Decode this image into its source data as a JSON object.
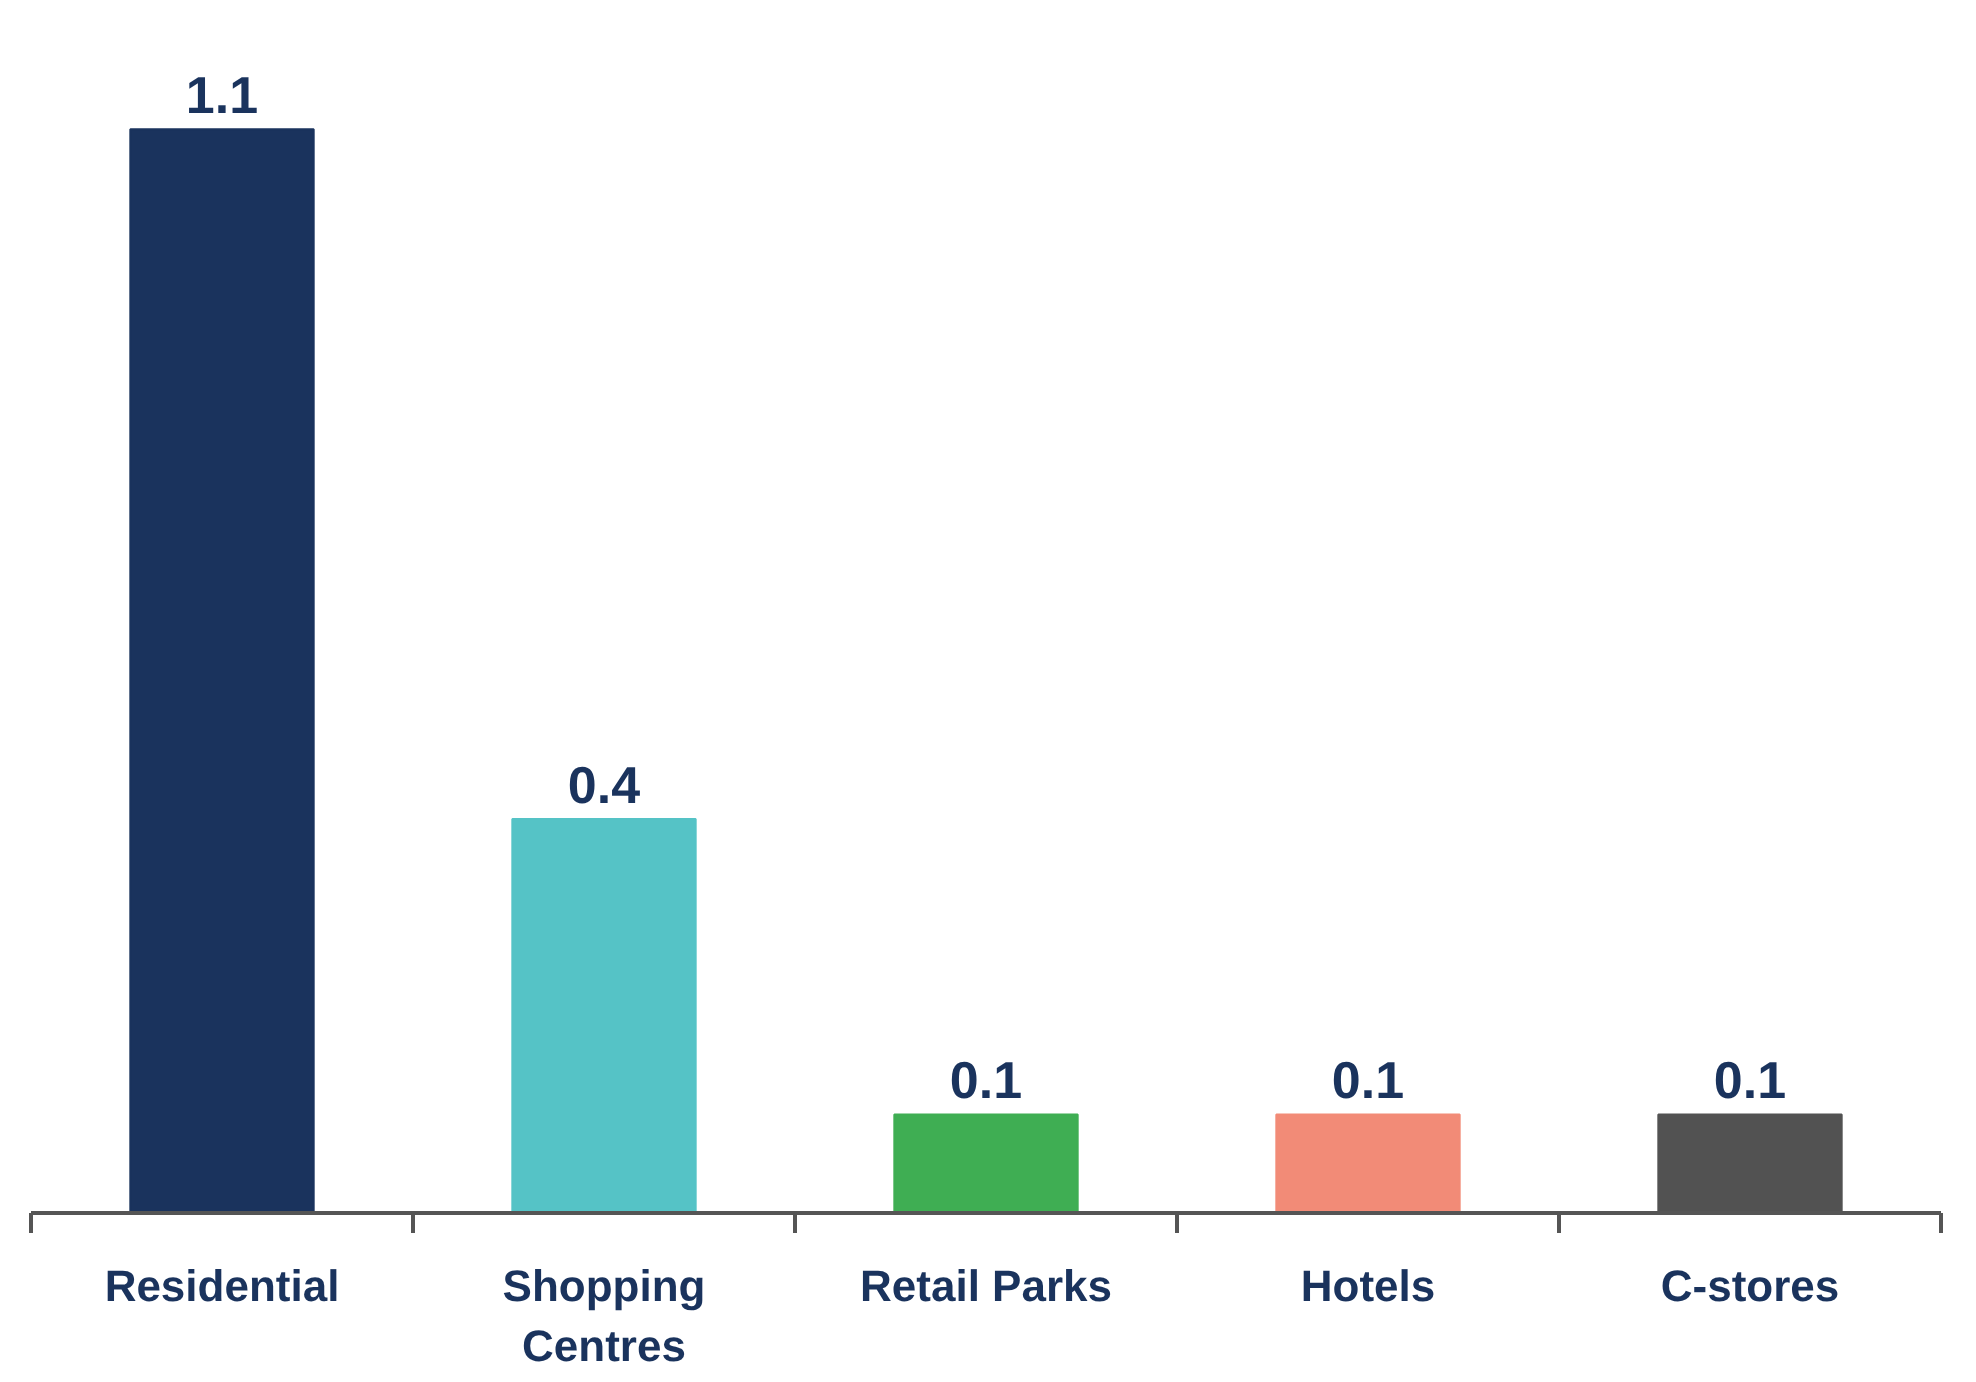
{
  "chart_data": {
    "type": "bar",
    "categories": [
      "Residential",
      "Shopping Centres",
      "Retail Parks",
      "Hotels",
      "C-stores"
    ],
    "values": [
      1.1,
      0.4,
      0.1,
      0.1,
      0.1
    ],
    "colors": [
      "#1a335d",
      "#55c3c6",
      "#3fae53",
      "#f28b77",
      "#525252"
    ],
    "data_labels": true,
    "grid": false
  }
}
